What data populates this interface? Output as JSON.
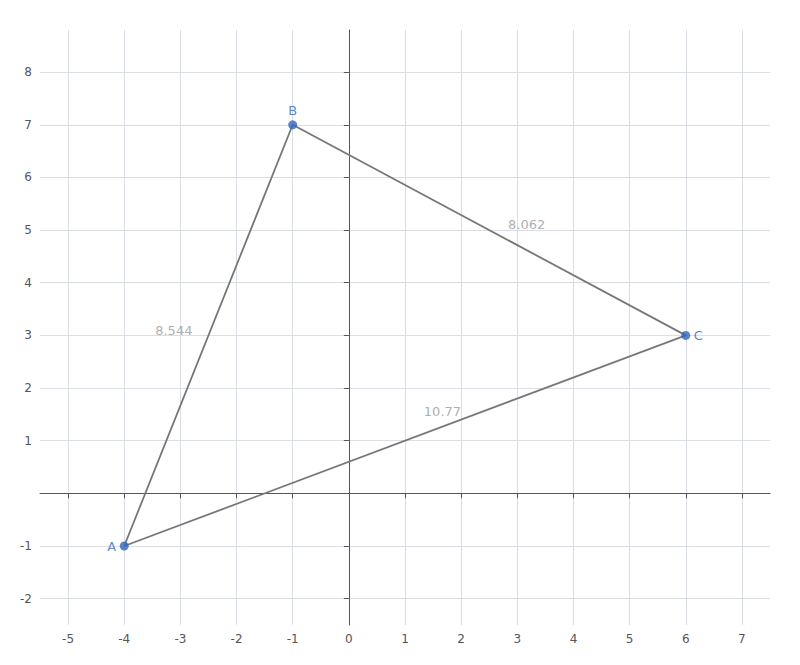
{
  "chart_data": {
    "type": "line",
    "series": [
      {
        "type": "line",
        "x": [
          -4,
          -1,
          6,
          -4
        ],
        "values": [
          -1,
          7,
          3,
          -1
        ],
        "color": "#777777"
      },
      {
        "type": "scatter",
        "x": [
          -4,
          -1,
          6
        ],
        "values": [
          -1,
          7,
          3
        ],
        "color": "#3366bb"
      }
    ],
    "annotations": [
      {
        "text": "A",
        "x": -4,
        "y": -1,
        "color": "#3366bb"
      },
      {
        "text": "B",
        "x": -1,
        "y": 7,
        "color": "#3366bb"
      },
      {
        "text": "C",
        "x": 6,
        "y": 3,
        "color": "#3366bb"
      },
      {
        "text": "8.544",
        "x": -2.75,
        "y": 3.1,
        "color": "#999999"
      },
      {
        "text": "8.062",
        "x": 2.8,
        "y": 5.1,
        "color": "#999999"
      },
      {
        "text": "10.77",
        "x": 1.3,
        "y": 1.55,
        "color": "#999999"
      }
    ],
    "xlim": [
      -5.5,
      7.5
    ],
    "ylim": [
      -2.5,
      8.8
    ],
    "xticks": [
      -5,
      -4,
      -3,
      -2,
      -1,
      0,
      1,
      2,
      3,
      4,
      5,
      6,
      7
    ],
    "yticks": [
      -2,
      -1,
      1,
      2,
      3,
      4,
      5,
      6,
      7,
      8
    ],
    "grid": true
  }
}
